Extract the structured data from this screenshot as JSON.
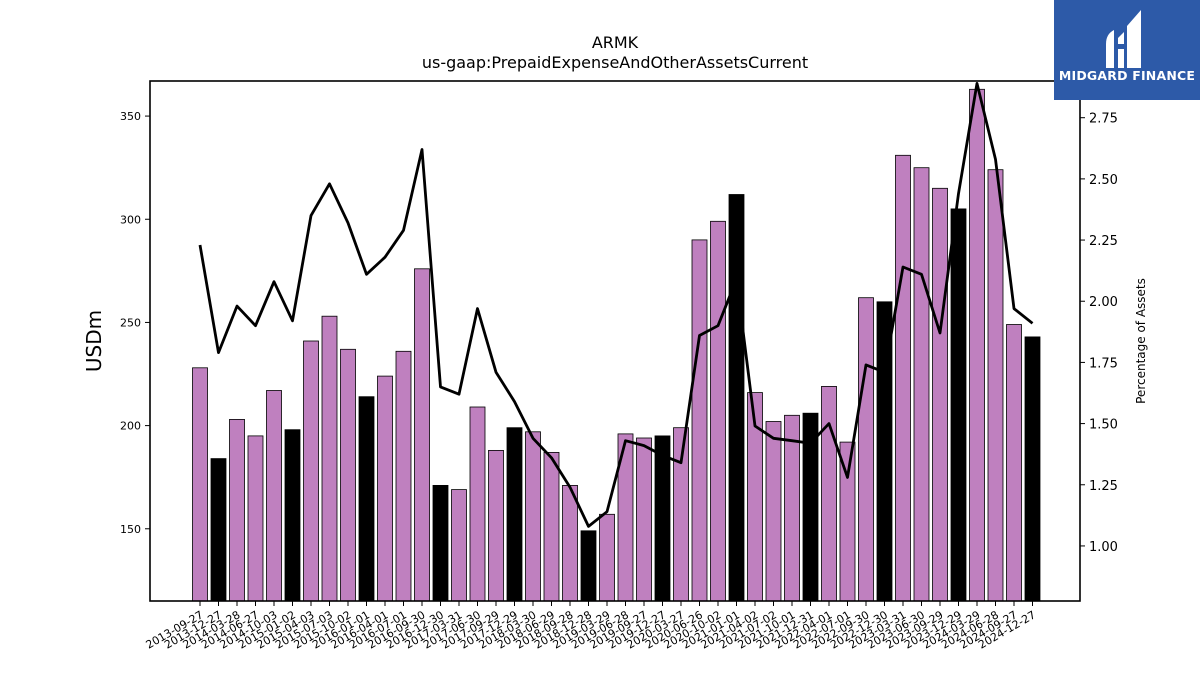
{
  "brand": {
    "name": "MIDGARD FINANCE",
    "bg_color": "#2d5aa8"
  },
  "chart_data": {
    "type": "bar",
    "title": "ARMK",
    "subtitle": "us-gaap:PrepaidExpenseAndOtherAssetsCurrent",
    "ylabel": "USDm",
    "y2label": "Percentage of Assets",
    "ylim": [
      115,
      367
    ],
    "y2lim": [
      0.775,
      2.9
    ],
    "yticks": [
      150,
      200,
      250,
      300,
      350
    ],
    "y2ticks": [
      "1.00",
      "1.25",
      "1.50",
      "1.75",
      "2.00",
      "2.25",
      "2.50",
      "2.75"
    ],
    "colors": {
      "quarter_bar": "#bf80bf",
      "fiscal_year_end_bar": "#000000",
      "line": "#000000"
    },
    "categories": [
      "2013-09-27",
      "2013-12-27",
      "2014-03-28",
      "2014-06-27",
      "2014-10-03",
      "2015-01-02",
      "2015-04-03",
      "2015-07-03",
      "2015-10-02",
      "2016-01-01",
      "2016-04-01",
      "2016-07-01",
      "2016-09-30",
      "2016-12-30",
      "2017-03-31",
      "2017-06-30",
      "2017-09-29",
      "2017-12-29",
      "2018-03-30",
      "2018-06-29",
      "2018-09-28",
      "2018-12-28",
      "2019-03-29",
      "2019-06-28",
      "2019-09-27",
      "2019-12-27",
      "2020-03-27",
      "2020-06-26",
      "2020-10-02",
      "2021-01-01",
      "2021-04-02",
      "2021-07-02",
      "2021-10-01",
      "2021-12-31",
      "2022-04-01",
      "2022-07-01",
      "2022-09-30",
      "2022-12-30",
      "2023-03-31",
      "2023-06-30",
      "2023-09-29",
      "2023-12-29",
      "2024-03-29",
      "2024-06-28",
      "2024-09-27",
      "2024-12-27"
    ],
    "series": [
      {
        "values": [
          228,
          184,
          203,
          195,
          217,
          198,
          241,
          253,
          237,
          214,
          224,
          236,
          276,
          171,
          169,
          209,
          188,
          199,
          197,
          187,
          171,
          149,
          157,
          196,
          194,
          195,
          199,
          290,
          299,
          312,
          216,
          202,
          205,
          206,
          219,
          192,
          262,
          260,
          331,
          325,
          315,
          305,
          363,
          324,
          249,
          243
        ],
        "fiscal_year_end": [
          false,
          true,
          false,
          false,
          false,
          true,
          false,
          false,
          false,
          true,
          false,
          false,
          false,
          true,
          false,
          false,
          false,
          true,
          false,
          false,
          false,
          true,
          false,
          false,
          false,
          true,
          false,
          false,
          false,
          true,
          false,
          false,
          false,
          true,
          false,
          false,
          false,
          true,
          false,
          false,
          false,
          true,
          false,
          false,
          false,
          true
        ]
      },
      {
        "axis": "right",
        "values": [
          2.23,
          1.79,
          1.98,
          1.9,
          2.08,
          1.92,
          2.35,
          2.48,
          2.32,
          2.11,
          2.18,
          2.29,
          2.62,
          1.65,
          1.62,
          1.97,
          1.71,
          1.59,
          1.44,
          1.36,
          1.24,
          1.08,
          1.14,
          1.43,
          1.41,
          1.37,
          1.34,
          1.86,
          1.9,
          2.09,
          1.49,
          1.44,
          1.43,
          1.42,
          1.5,
          1.28,
          1.74,
          1.71,
          2.14,
          2.11,
          1.87,
          2.44,
          2.89,
          2.58,
          1.97,
          1.91
        ]
      }
    ]
  }
}
